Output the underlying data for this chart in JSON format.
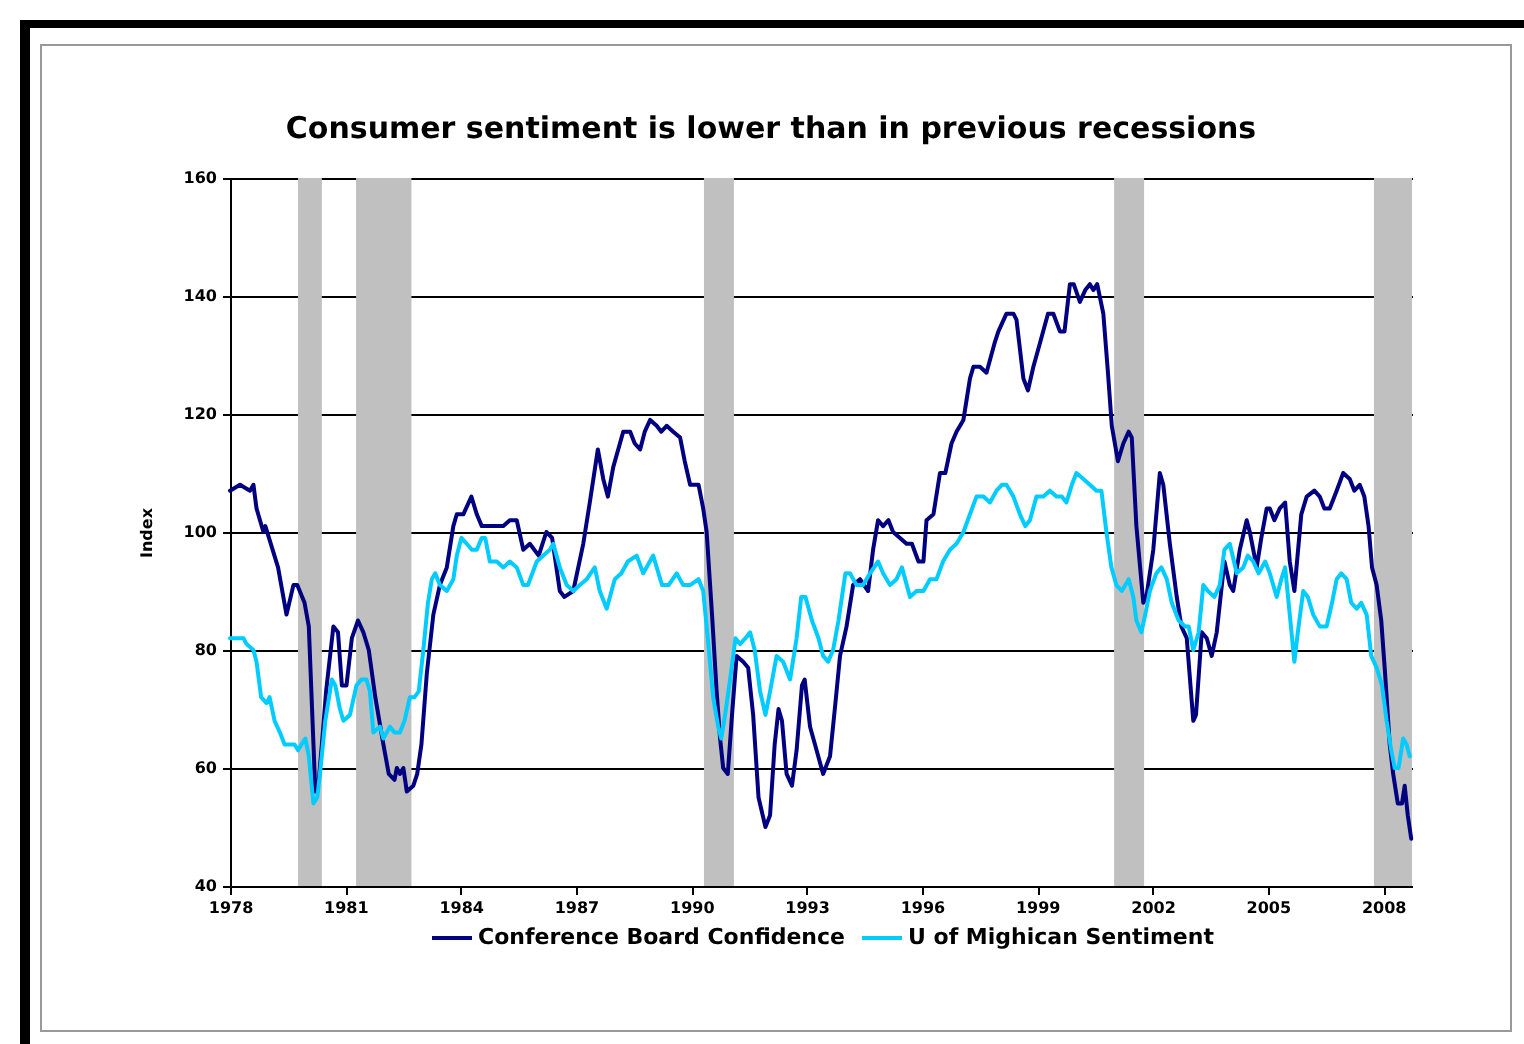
{
  "chart_data": {
    "type": "line",
    "title": "Consumer sentiment is lower than in previous recessions",
    "ylabel": "Index",
    "xlim": [
      1978,
      2008.75
    ],
    "xticks": [
      1978,
      1981,
      1984,
      1987,
      1990,
      1993,
      1996,
      1999,
      2002,
      2005,
      2008
    ],
    "ylim": [
      40,
      160
    ],
    "yticks": [
      40,
      60,
      80,
      100,
      120,
      140,
      160
    ],
    "grid": "y",
    "legend": "bottom",
    "bands": [
      {
        "axis": "x",
        "from": 1979.77,
        "to": 1980.39,
        "color": "#c0c0c0"
      },
      {
        "axis": "x",
        "from": 1981.28,
        "to": 1982.72,
        "color": "#c0c0c0"
      },
      {
        "axis": "x",
        "from": 1990.33,
        "to": 1991.11,
        "color": "#c0c0c0"
      },
      {
        "axis": "x",
        "from": 2001.0,
        "to": 2001.78,
        "color": "#c0c0c0"
      },
      {
        "axis": "x",
        "from": 2007.76,
        "to": 2008.75,
        "color": "#c0c0c0"
      }
    ],
    "series": [
      {
        "name": "Conference Board Confidence",
        "color": "#000080",
        "x": [
          1978.0,
          1978.26,
          1978.52,
          1978.61,
          1978.69,
          1978.87,
          1978.92,
          1979.25,
          1979.47,
          1979.65,
          1979.75,
          1979.94,
          1980.05,
          1980.22,
          1980.31,
          1980.39,
          1980.5,
          1980.69,
          1980.81,
          1980.91,
          1981.03,
          1981.17,
          1981.33,
          1981.47,
          1981.61,
          1981.78,
          1981.99,
          1982.13,
          1982.28,
          1982.34,
          1982.42,
          1982.51,
          1982.6,
          1982.77,
          1982.87,
          1982.98,
          1983.12,
          1983.29,
          1983.46,
          1983.64,
          1983.81,
          1983.9,
          1984.07,
          1984.28,
          1984.42,
          1984.55,
          1984.85,
          1985.11,
          1985.28,
          1985.46,
          1985.63,
          1985.8,
          1986.03,
          1986.23,
          1986.38,
          1986.58,
          1986.7,
          1986.93,
          1987.19,
          1987.36,
          1987.57,
          1987.71,
          1987.83,
          1987.97,
          1988.23,
          1988.41,
          1988.53,
          1988.67,
          1988.79,
          1988.93,
          1989.1,
          1989.22,
          1989.36,
          1989.53,
          1989.71,
          1989.83,
          1989.97,
          1990.19,
          1990.31,
          1990.4,
          1990.54,
          1990.66,
          1990.75,
          1990.83,
          1990.95,
          1991.06,
          1991.18,
          1991.35,
          1991.48,
          1991.61,
          1991.75,
          1991.93,
          1992.05,
          1992.17,
          1992.27,
          1992.36,
          1992.48,
          1992.62,
          1992.74,
          1992.88,
          1992.95,
          1993.09,
          1993.26,
          1993.43,
          1993.61,
          1993.75,
          1993.87,
          1994.04,
          1994.21,
          1994.39,
          1994.6,
          1994.73,
          1994.86,
          1994.99,
          1995.13,
          1995.25,
          1995.43,
          1995.6,
          1995.74,
          1995.91,
          1996.04,
          1996.12,
          1996.3,
          1996.47,
          1996.61,
          1996.77,
          1996.9,
          1997.08,
          1997.25,
          1997.34,
          1997.51,
          1997.68,
          1997.89,
          1997.99,
          1998.2,
          1998.38,
          1998.46,
          1998.64,
          1998.76,
          1998.9,
          1999.07,
          1999.28,
          1999.42,
          1999.59,
          1999.71,
          1999.85,
          1999.95,
          2000.11,
          2000.25,
          2000.37,
          2000.46,
          2000.56,
          2000.72,
          2000.84,
          2000.94,
          2001.1,
          2001.24,
          2001.38,
          2001.46,
          2001.58,
          2001.76,
          2001.84,
          2002.02,
          2002.19,
          2002.28,
          2002.45,
          2002.63,
          2002.75,
          2002.89,
          2003.06,
          2003.13,
          2003.28,
          2003.41,
          2003.54,
          2003.67,
          2003.87,
          2004.01,
          2004.1,
          2004.27,
          2004.45,
          2004.53,
          2004.71,
          2004.83,
          2004.97,
          2005.05,
          2005.17,
          2005.31,
          2005.45,
          2005.57,
          2005.69,
          2005.87,
          2006.01,
          2006.21,
          2006.35,
          2006.47,
          2006.61,
          2006.79,
          2006.96,
          2007.13,
          2007.25,
          2007.39,
          2007.51,
          2007.62,
          2007.71,
          2007.83,
          2007.95,
          2008.05,
          2008.17,
          2008.26,
          2008.38,
          2008.49,
          2008.56,
          2008.64,
          2008.73
        ],
        "values": [
          107,
          108,
          107,
          108,
          104,
          100,
          101,
          94,
          86,
          91,
          91,
          88,
          84,
          56,
          58,
          64,
          73,
          84,
          83,
          74,
          74,
          82,
          85,
          83,
          80,
          72,
          64,
          59,
          58,
          60,
          59,
          60,
          56,
          57,
          59,
          64,
          76,
          86,
          91,
          94,
          101,
          103,
          103,
          106,
          103,
          101,
          101,
          101,
          102,
          102,
          97,
          98,
          96,
          100,
          99,
          90,
          89,
          90,
          98,
          105,
          114,
          109,
          106,
          111,
          117,
          117,
          115,
          114,
          117,
          119,
          118,
          117,
          118,
          117,
          116,
          112,
          108,
          108,
          104,
          100,
          86,
          73,
          65,
          60,
          59,
          69,
          79,
          78,
          77,
          69,
          55,
          50,
          52,
          64,
          70,
          68,
          59,
          57,
          63,
          74,
          75,
          67,
          63,
          59,
          62,
          71,
          79,
          84,
          91,
          92,
          90,
          97,
          102,
          101,
          102,
          100,
          99,
          98,
          98,
          95,
          95,
          102,
          103,
          110,
          110,
          115,
          117,
          119,
          126,
          128,
          128,
          127,
          132,
          134,
          137,
          137,
          136,
          126,
          124,
          128,
          132,
          137,
          137,
          134,
          134,
          142,
          142,
          139,
          141,
          142,
          141,
          142,
          137,
          127,
          118,
          112,
          115,
          117,
          116,
          101,
          88,
          89,
          97,
          110,
          108,
          98,
          89,
          84,
          82,
          68,
          69,
          83,
          82,
          79,
          83,
          95,
          91,
          90,
          97,
          102,
          100,
          94,
          99,
          104,
          104,
          102,
          104,
          105,
          95,
          90,
          103,
          106,
          107,
          106,
          104,
          104,
          107,
          110,
          109,
          107,
          108,
          106,
          101,
          94,
          91,
          85,
          76,
          64,
          59,
          54,
          54,
          57,
          52,
          48
        ]
      },
      {
        "name": "U of Mighican Sentiment",
        "color": "#00ccff",
        "x": [
          1978.0,
          1978.17,
          1978.35,
          1978.43,
          1978.61,
          1978.69,
          1978.81,
          1978.95,
          1979.03,
          1979.16,
          1979.3,
          1979.42,
          1979.56,
          1979.68,
          1979.77,
          1979.86,
          1979.96,
          1980.05,
          1980.17,
          1980.27,
          1980.34,
          1980.48,
          1980.65,
          1980.74,
          1980.86,
          1980.95,
          1981.12,
          1981.29,
          1981.42,
          1981.55,
          1981.64,
          1981.73,
          1981.9,
          1981.99,
          1982.16,
          1982.28,
          1982.42,
          1982.54,
          1982.68,
          1982.8,
          1982.91,
          1983.03,
          1983.15,
          1983.25,
          1983.34,
          1983.46,
          1983.64,
          1983.81,
          1983.9,
          1984.02,
          1984.16,
          1984.29,
          1984.42,
          1984.55,
          1984.64,
          1984.76,
          1984.94,
          1985.11,
          1985.28,
          1985.46,
          1985.63,
          1985.75,
          1985.98,
          1986.15,
          1986.32,
          1986.41,
          1986.58,
          1986.76,
          1986.93,
          1987.1,
          1987.28,
          1987.49,
          1987.62,
          1987.8,
          1988.01,
          1988.18,
          1988.35,
          1988.58,
          1988.75,
          1989.01,
          1989.24,
          1989.41,
          1989.62,
          1989.79,
          1989.97,
          1990.19,
          1990.31,
          1990.43,
          1990.57,
          1990.7,
          1990.78,
          1990.88,
          1991.01,
          1991.15,
          1991.27,
          1991.41,
          1991.53,
          1991.65,
          1991.79,
          1991.93,
          1992.05,
          1992.22,
          1992.39,
          1992.57,
          1992.74,
          1992.86,
          1992.97,
          1993.14,
          1993.31,
          1993.43,
          1993.56,
          1993.69,
          1993.83,
          1994.01,
          1994.13,
          1994.3,
          1994.47,
          1994.65,
          1994.86,
          1994.99,
          1995.17,
          1995.34,
          1995.48,
          1995.69,
          1995.86,
          1996.04,
          1996.21,
          1996.38,
          1996.55,
          1996.73,
          1996.9,
          1997.08,
          1997.25,
          1997.42,
          1997.6,
          1997.77,
          1997.94,
          1998.08,
          1998.2,
          1998.38,
          1998.55,
          1998.69,
          1998.81,
          1998.98,
          1999.16,
          1999.33,
          1999.5,
          1999.64,
          1999.76,
          1999.9,
          2000.02,
          2000.2,
          2000.37,
          2000.54,
          2000.67,
          2000.8,
          2000.93,
          2001.06,
          2001.2,
          2001.38,
          2001.5,
          2001.58,
          2001.71,
          2001.81,
          2001.93,
          2002.1,
          2002.23,
          2002.37,
          2002.5,
          2002.68,
          2002.85,
          2002.94,
          2003.06,
          2003.2,
          2003.32,
          2003.44,
          2003.61,
          2003.75,
          2003.87,
          2004.01,
          2004.19,
          2004.36,
          2004.48,
          2004.62,
          2004.76,
          2004.93,
          2005.05,
          2005.23,
          2005.35,
          2005.45,
          2005.57,
          2005.69,
          2005.78,
          2005.92,
          2006.04,
          2006.18,
          2006.35,
          2006.53,
          2006.67,
          2006.79,
          2006.91,
          2007.05,
          2007.17,
          2007.31,
          2007.43,
          2007.57,
          2007.69,
          2007.83,
          2007.97,
          2008.09,
          2008.21,
          2008.3,
          2008.4,
          2008.52,
          2008.61,
          2008.69
        ],
        "values": [
          82,
          82,
          82,
          81,
          80,
          78,
          72,
          71,
          72,
          68,
          66,
          64,
          64,
          64,
          63,
          64,
          65,
          62,
          54,
          55,
          59,
          68,
          75,
          74,
          70,
          68,
          69,
          74,
          75,
          75,
          73,
          66,
          67,
          65,
          67,
          66,
          66,
          68,
          72,
          72,
          73,
          80,
          88,
          92,
          93,
          91,
          90,
          92,
          96,
          99,
          98,
          97,
          97,
          99,
          99,
          95,
          95,
          94,
          95,
          94,
          91,
          91,
          95,
          96,
          97,
          98,
          94,
          91,
          90,
          91,
          92,
          94,
          90,
          87,
          92,
          93,
          95,
          96,
          93,
          96,
          91,
          91,
          93,
          91,
          91,
          92,
          90,
          82,
          72,
          67,
          65,
          69,
          75,
          82,
          81,
          82,
          83,
          80,
          73,
          69,
          73,
          79,
          78,
          75,
          82,
          89,
          89,
          85,
          82,
          79,
          78,
          80,
          85,
          93,
          93,
          91,
          91,
          93,
          95,
          93,
          91,
          92,
          94,
          89,
          90,
          90,
          92,
          92,
          95,
          97,
          98,
          100,
          103,
          106,
          106,
          105,
          107,
          108,
          108,
          106,
          103,
          101,
          102,
          106,
          106,
          107,
          106,
          106,
          105,
          108,
          110,
          109,
          108,
          107,
          107,
          100,
          94,
          91,
          90,
          92,
          89,
          85,
          83,
          86,
          90,
          93,
          94,
          92,
          88,
          85,
          84,
          84,
          80,
          83,
          91,
          90,
          89,
          91,
          97,
          98,
          93,
          94,
          96,
          95,
          93,
          95,
          93,
          89,
          92,
          94,
          86,
          78,
          83,
          90,
          89,
          86,
          84,
          84,
          88,
          92,
          93,
          92,
          88,
          87,
          88,
          86,
          79,
          77,
          74,
          68,
          63,
          60,
          60,
          65,
          64,
          62
        ]
      }
    ]
  }
}
